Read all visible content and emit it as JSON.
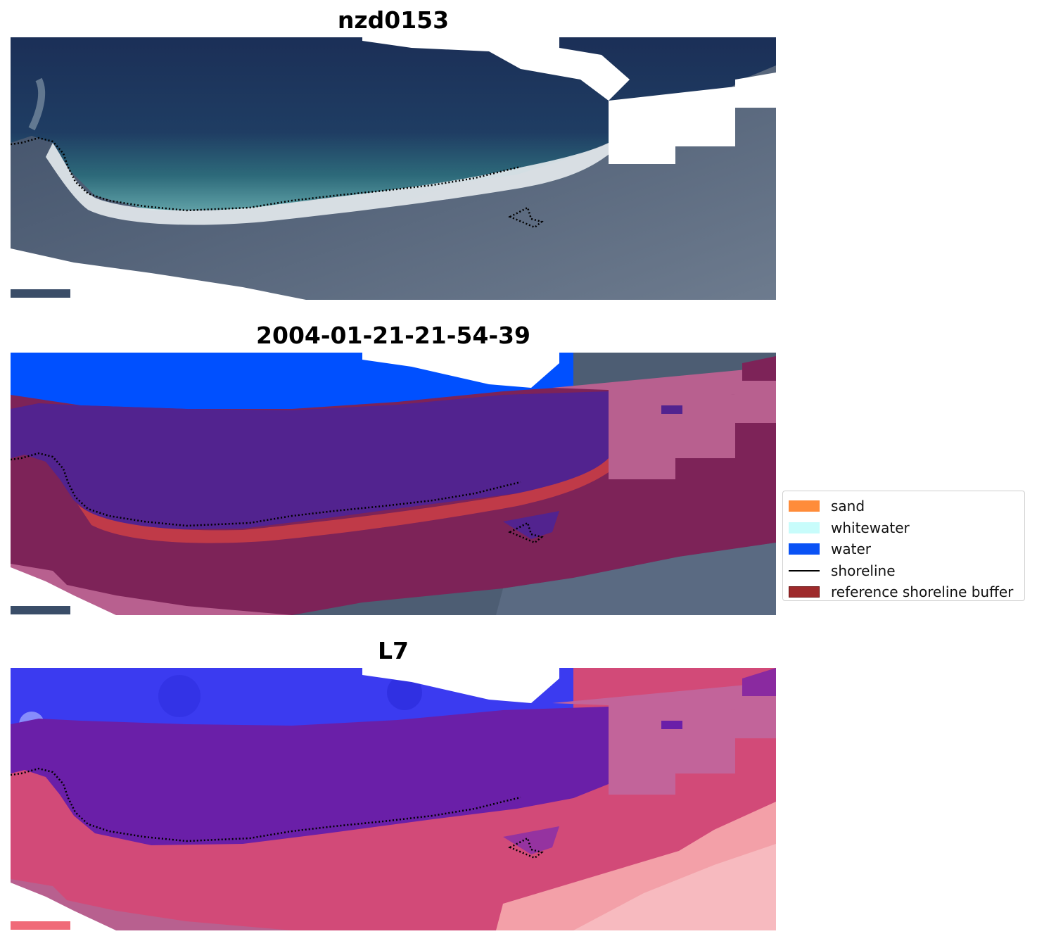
{
  "panels": [
    {
      "title": "nzd0153",
      "kind": "rgb"
    },
    {
      "title": "2004-01-21-21-54-39",
      "kind": "classified"
    },
    {
      "title": "L7",
      "kind": "index"
    }
  ],
  "legend": {
    "items": [
      {
        "label": "sand",
        "color": "#ff8c3a",
        "type": "patch"
      },
      {
        "label": "whitewater",
        "color": "#c8fcfb",
        "type": "patch"
      },
      {
        "label": "water",
        "color": "#0a52f5",
        "type": "patch"
      },
      {
        "label": "shoreline",
        "color": "#000000",
        "type": "line"
      },
      {
        "label": "reference shoreline buffer",
        "color": "#9e2a2b",
        "type": "patch"
      }
    ]
  },
  "colors": {
    "ocean_dark": "#1d3560",
    "land": "#4a5a70",
    "beach": "#e8edf0",
    "water_class": "#0050ff",
    "buffer_purple": "#52238f",
    "buffer_maroon": "#7d2358",
    "buffer_pink": "#b8608f",
    "sand_red": "#c03a48",
    "index_blue": "#3b3bf0",
    "index_pink": "#d24a78",
    "index_light": "#f3a0a8"
  }
}
